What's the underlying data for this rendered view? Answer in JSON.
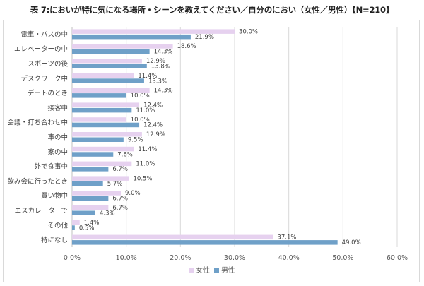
{
  "title": "表 7:においが特に気になる場所・シーンを教えてください／自分のにおい（女性／男性）【N=210】",
  "chart_data": {
    "type": "bar",
    "orientation": "horizontal",
    "categories": [
      "電車・バスの中",
      "エレベーターの中",
      "スポーツの後",
      "デスクワーク中",
      "デートのとき",
      "接客中",
      "会議・打ち合わせ中",
      "車の中",
      "家の中",
      "外で食事中",
      "飲み会に行ったとき",
      "買い物中",
      "エスカレーターで",
      "その他",
      "特になし"
    ],
    "series": [
      {
        "name": "女性",
        "color": "#e6d1ef",
        "values": [
          30.0,
          18.6,
          12.9,
          11.4,
          14.3,
          12.4,
          10.0,
          12.9,
          11.4,
          11.0,
          10.5,
          9.0,
          6.7,
          1.4,
          37.1
        ],
        "labels": [
          "30.0%",
          "18.6%",
          "12.9%",
          "11.4%",
          "14.3%",
          "12.4%",
          "10.0%",
          "12.9%",
          "11.4%",
          "11.0%",
          "10.5%",
          "9.0%",
          "6.7%",
          "1.4%",
          "37.1%"
        ]
      },
      {
        "name": "男性",
        "color": "#6fa0c8",
        "values": [
          21.9,
          14.3,
          13.8,
          13.3,
          10.0,
          11.0,
          12.4,
          9.5,
          7.6,
          6.7,
          5.7,
          6.7,
          4.3,
          0.5,
          49.0
        ],
        "labels": [
          "21.9%",
          "14.3%",
          "13.8%",
          "13.3%",
          "10.0%",
          "11.0%",
          "12.4%",
          "9.5%",
          "7.6%",
          "6.7%",
          "5.7%",
          "6.7%",
          "4.3%",
          "0.5%",
          "49.0%"
        ]
      }
    ],
    "xlim": [
      0,
      60
    ],
    "xticks": [
      0,
      10,
      20,
      30,
      40,
      50,
      60
    ],
    "xtick_labels": [
      "0.0%",
      "10.0%",
      "20.0%",
      "30.0%",
      "40.0%",
      "50.0%",
      "60.0%"
    ],
    "grid": true,
    "legend_position": "bottom"
  }
}
